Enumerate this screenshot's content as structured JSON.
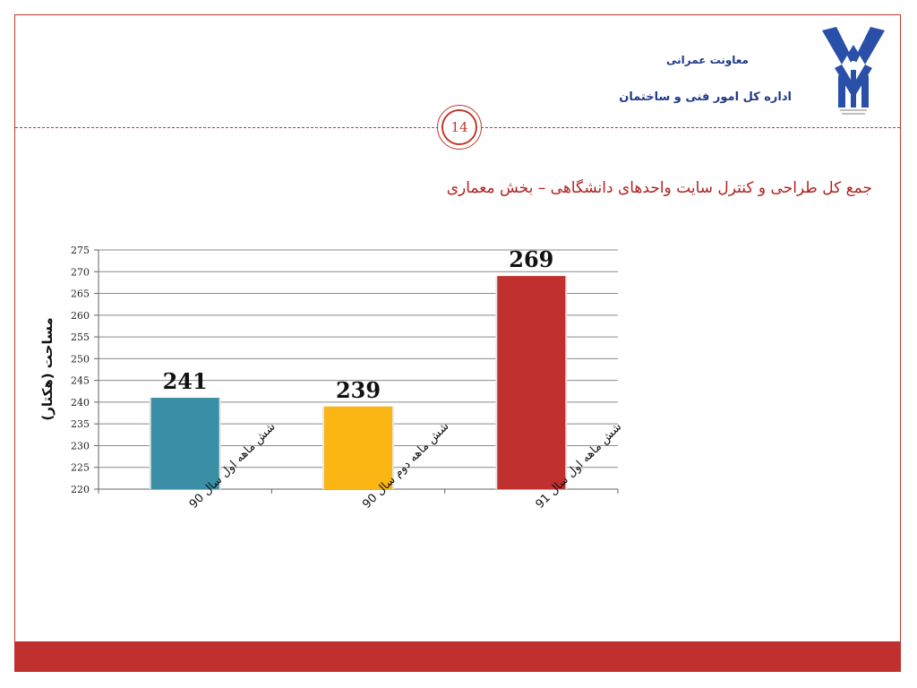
{
  "header": {
    "org_line1": "معاونت عمرانی",
    "org_line2": "اداره کل امور فنی و ساختمان",
    "page_number": "14"
  },
  "slide": {
    "title": "جمع کل طراحی و کنترل سایت واحدهای دانشگاهی – بخش معماری"
  },
  "colors": {
    "accent": "#c0302f",
    "org_text": "#1f3a8a",
    "logo_blue": "#2a4fa8"
  },
  "chart_data": {
    "type": "bar",
    "categories": [
      "شش ماهه اول سال 90",
      "شش ماهه دوم سال 90",
      "شش ماهه اول سال 91"
    ],
    "values": [
      241,
      239,
      269
    ],
    "bar_colors": [
      "#3a8fa6",
      "#fbb614",
      "#c0302f"
    ],
    "data_labels": [
      "241",
      "239",
      "269"
    ],
    "ylabel": "مساحت (هکتار)",
    "xlabel": "",
    "ylim": [
      220,
      275
    ],
    "ytick_step": 5,
    "grid": true,
    "legend": "none"
  }
}
